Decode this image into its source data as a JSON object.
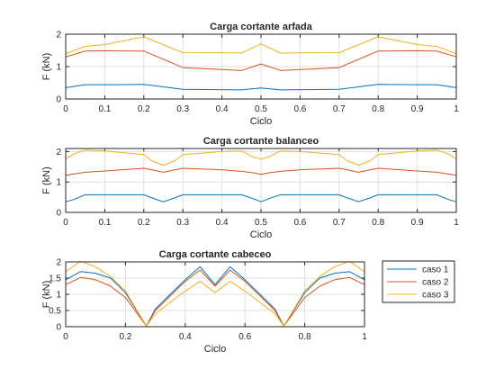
{
  "chart_data": [
    {
      "type": "line",
      "title": "Carga cortante arfada",
      "xlabel": "Ciclo",
      "ylabel": "F (kN)",
      "xlim": [
        0,
        1
      ],
      "ylim": [
        0,
        2
      ],
      "xticks": [
        "0",
        "0.1",
        "0.2",
        "0.3",
        "0.4",
        "0.5",
        "0.6",
        "0.7",
        "0.8",
        "0.9",
        "1"
      ],
      "yticks": [
        "0",
        "1",
        "2"
      ],
      "grid": true,
      "x": [
        0,
        0.05,
        0.1,
        0.2,
        0.3,
        0.45,
        0.5,
        0.55,
        0.7,
        0.8,
        0.9,
        0.95,
        1
      ],
      "series": [
        {
          "name": "caso 1",
          "values": [
            0.35,
            0.44,
            0.44,
            0.45,
            0.3,
            0.28,
            0.34,
            0.28,
            0.3,
            0.45,
            0.44,
            0.44,
            0.35
          ]
        },
        {
          "name": "caso 2",
          "values": [
            1.3,
            1.48,
            1.49,
            1.48,
            0.97,
            0.88,
            1.08,
            0.88,
            0.97,
            1.48,
            1.49,
            1.48,
            1.3
          ]
        },
        {
          "name": "caso 3",
          "values": [
            1.4,
            1.62,
            1.68,
            1.92,
            1.43,
            1.42,
            1.7,
            1.42,
            1.43,
            1.92,
            1.68,
            1.62,
            1.4
          ]
        }
      ]
    },
    {
      "type": "line",
      "title": "Carga cortante balanceo",
      "xlabel": "Ciclo",
      "ylabel": "F (kN)",
      "xlim": [
        0,
        1
      ],
      "ylim": [
        0,
        2.1
      ],
      "xticks": [
        "0",
        "0.1",
        "0.2",
        "0.3",
        "0.4",
        "0.5",
        "0.6",
        "0.7",
        "0.8",
        "0.9",
        "1"
      ],
      "yticks": [
        "0",
        "1",
        "2"
      ],
      "grid": true,
      "x": [
        0,
        0.02,
        0.05,
        0.1,
        0.2,
        0.22,
        0.25,
        0.28,
        0.3,
        0.4,
        0.45,
        0.48,
        0.5,
        0.52,
        0.55,
        0.6,
        0.7,
        0.72,
        0.75,
        0.78,
        0.8,
        0.9,
        0.95,
        0.98,
        1
      ],
      "series": [
        {
          "name": "caso 1",
          "values": [
            0.35,
            0.42,
            0.58,
            0.58,
            0.58,
            0.48,
            0.35,
            0.48,
            0.58,
            0.58,
            0.58,
            0.45,
            0.35,
            0.45,
            0.58,
            0.58,
            0.58,
            0.48,
            0.35,
            0.48,
            0.58,
            0.58,
            0.58,
            0.42,
            0.35
          ]
        },
        {
          "name": "caso 2",
          "values": [
            1.22,
            1.26,
            1.32,
            1.36,
            1.45,
            1.4,
            1.32,
            1.4,
            1.45,
            1.4,
            1.35,
            1.3,
            1.25,
            1.3,
            1.35,
            1.4,
            1.45,
            1.4,
            1.32,
            1.4,
            1.45,
            1.36,
            1.32,
            1.26,
            1.22
          ]
        },
        {
          "name": "caso 3",
          "values": [
            1.75,
            1.92,
            2.05,
            2.02,
            1.9,
            1.7,
            1.55,
            1.7,
            1.9,
            2.0,
            2.02,
            1.82,
            1.75,
            1.82,
            2.02,
            2.0,
            1.9,
            1.7,
            1.55,
            1.7,
            1.9,
            2.02,
            2.05,
            1.92,
            1.75
          ]
        }
      ]
    },
    {
      "type": "line",
      "title": "Carga cortante cabeceo",
      "xlabel": "Ciclo",
      "ylabel": "F (kN)",
      "xlim": [
        0,
        1
      ],
      "ylim": [
        0,
        2
      ],
      "xticks": [
        "0",
        "0.2",
        "0.4",
        "0.6",
        "0.8",
        "1"
      ],
      "yticks": [
        "0",
        "0.5",
        "1",
        "1.5",
        "2"
      ],
      "grid": true,
      "x": [
        0,
        0.05,
        0.1,
        0.15,
        0.2,
        0.27,
        0.3,
        0.35,
        0.4,
        0.45,
        0.5,
        0.55,
        0.6,
        0.65,
        0.7,
        0.73,
        0.8,
        0.85,
        0.9,
        0.95,
        1
      ],
      "series": [
        {
          "name": "caso 1",
          "values": [
            1.45,
            1.7,
            1.65,
            1.5,
            1.05,
            0.02,
            0.55,
            1.0,
            1.45,
            1.85,
            1.3,
            1.85,
            1.45,
            1.0,
            0.55,
            0.02,
            1.05,
            1.5,
            1.65,
            1.7,
            1.45
          ]
        },
        {
          "name": "caso 2",
          "values": [
            1.3,
            1.52,
            1.45,
            1.25,
            0.9,
            0.02,
            0.5,
            0.95,
            1.4,
            1.75,
            1.25,
            1.75,
            1.4,
            0.95,
            0.5,
            0.02,
            0.9,
            1.25,
            1.45,
            1.52,
            1.3
          ]
        },
        {
          "name": "caso 3",
          "values": [
            1.7,
            2.02,
            1.85,
            1.55,
            1.1,
            0.02,
            0.4,
            0.75,
            1.1,
            1.4,
            1.05,
            1.4,
            1.1,
            0.75,
            0.4,
            0.02,
            1.1,
            1.55,
            1.85,
            2.02,
            1.7
          ]
        }
      ],
      "legend_position": "right"
    }
  ],
  "colors": {
    "caso 1": "#0072bd",
    "caso 2": "#d95319",
    "caso 3": "#edb120"
  }
}
